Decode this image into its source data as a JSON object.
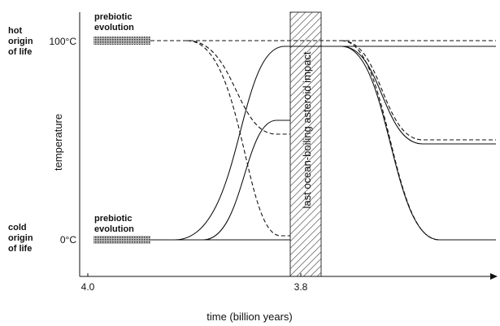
{
  "labels": {
    "hot_origin": [
      "hot",
      "origin",
      "of life"
    ],
    "cold_origin": [
      "cold",
      "origin",
      "of life"
    ],
    "prebiotic_top": [
      "prebiotic",
      "evolution"
    ],
    "prebiotic_bottom": [
      "prebiotic",
      "evolution"
    ],
    "y_axis": "temperature",
    "x_axis": "time (billion years)",
    "impact": "last ocean-boiling asteroid impact"
  },
  "y_ticks": [
    "100°C",
    "0°C"
  ],
  "x_ticks": [
    "4.0",
    "3.8"
  ]
}
